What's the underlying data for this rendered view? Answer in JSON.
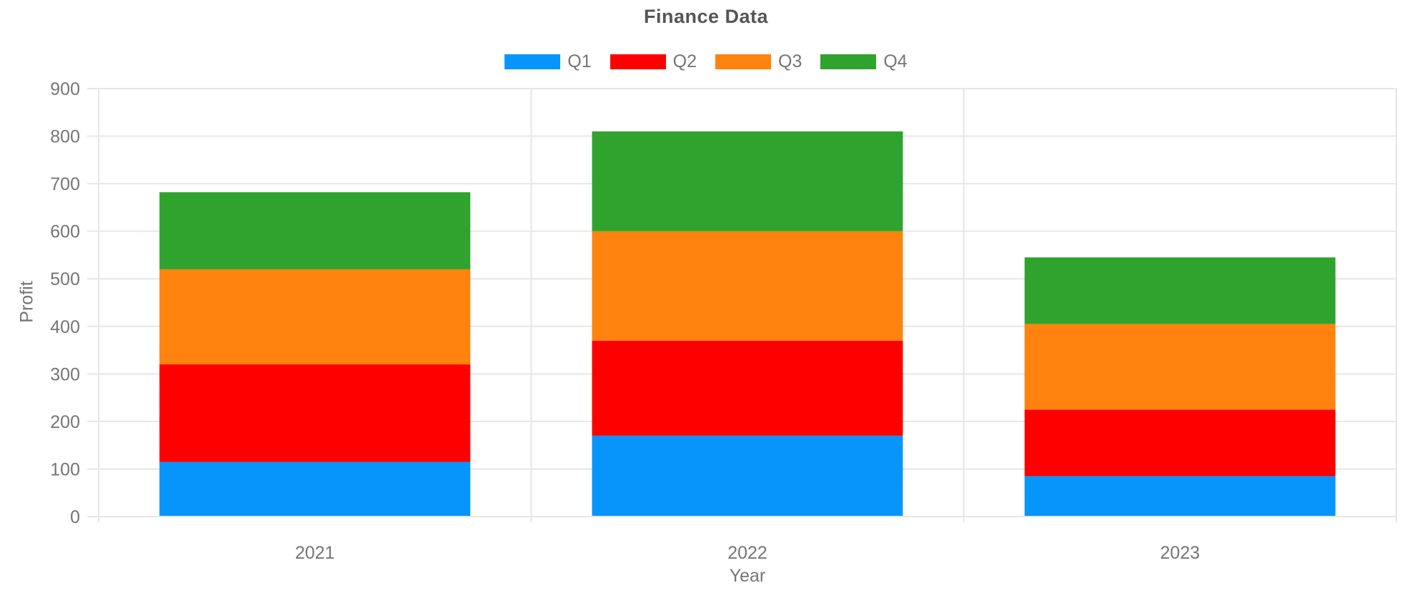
{
  "title": "Finance Data",
  "chart_data": {
    "type": "bar",
    "stacked": true,
    "title": "Finance Data",
    "xlabel": "Year",
    "ylabel": "Profit",
    "categories": [
      "2021",
      "2022",
      "2023"
    ],
    "series": [
      {
        "name": "Q1",
        "color": "#0895FB",
        "values": [
          115,
          170,
          85
        ]
      },
      {
        "name": "Q2",
        "color": "#FE0000",
        "values": [
          205,
          200,
          140
        ]
      },
      {
        "name": "Q3",
        "color": "#FF830E",
        "values": [
          200,
          230,
          180
        ]
      },
      {
        "name": "Q4",
        "color": "#30A32E",
        "values": [
          162,
          210,
          140
        ]
      }
    ],
    "stack_totals": [
      682,
      810,
      545
    ],
    "ylim": [
      0,
      900
    ],
    "ytick_step": 100,
    "ytick_labels": [
      "0",
      "100",
      "200",
      "300",
      "400",
      "500",
      "600",
      "700",
      "800",
      "900"
    ],
    "grid": true,
    "legend_position": "top",
    "colors": {
      "axis_text": "#757575",
      "title_text": "#555555",
      "gridline": "#e6e6e6",
      "background": "#ffffff"
    }
  }
}
